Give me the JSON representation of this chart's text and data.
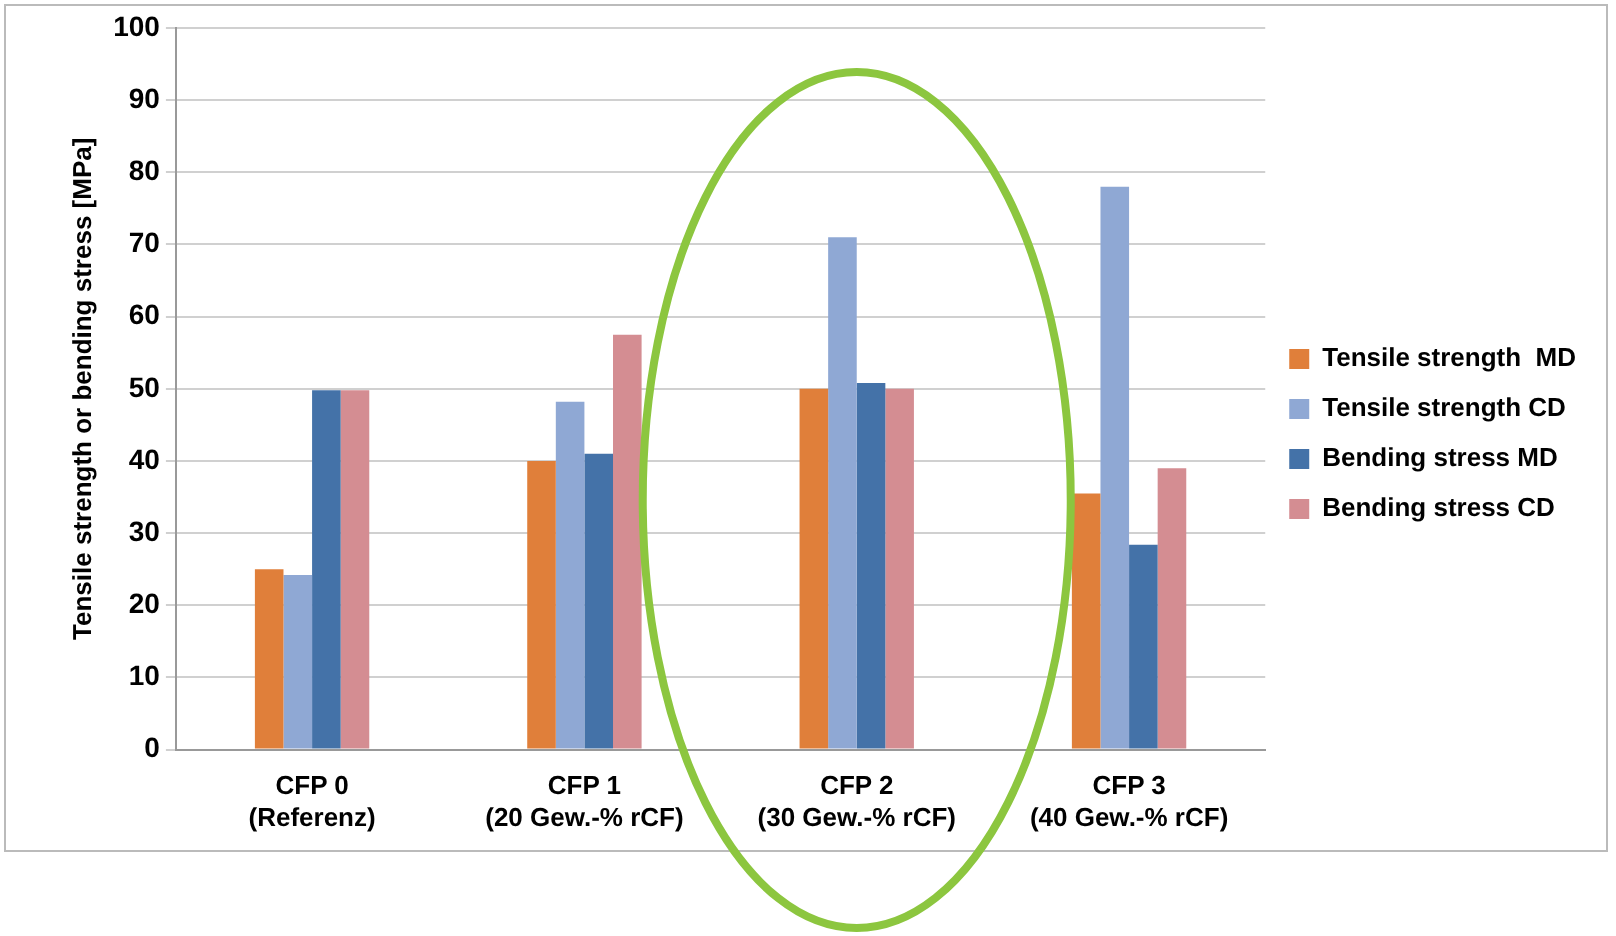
{
  "chart_data": {
    "type": "bar",
    "ylabel": "Tensile strength or bending stress [MPa]",
    "categories": [
      "CFP 0\n(Referenz)",
      "CFP 1\n(20 Gew.-% rCF)",
      "CFP 2\n(30 Gew.-% rCF)",
      "CFP 3\n(40 Gew.-% rCF)"
    ],
    "series": [
      {
        "name": "Tensile strength  MD",
        "color": "#e07f3a",
        "values": [
          25,
          40,
          50,
          35.5
        ]
      },
      {
        "name": "Tensile strength CD",
        "color": "#8fa8d4",
        "values": [
          24.2,
          48.2,
          71,
          78
        ]
      },
      {
        "name": "Bending stress MD",
        "color": "#4472a8",
        "values": [
          49.8,
          41,
          50.8,
          28.4
        ]
      },
      {
        "name": "Bending stress CD",
        "color": "#d48d92",
        "values": [
          49.8,
          57.5,
          50,
          39
        ]
      }
    ],
    "ylim": [
      0,
      100
    ],
    "yticks": [
      0,
      10,
      20,
      30,
      40,
      50,
      60,
      70,
      80,
      90,
      100
    ],
    "grid": "y",
    "legend": "right"
  }
}
